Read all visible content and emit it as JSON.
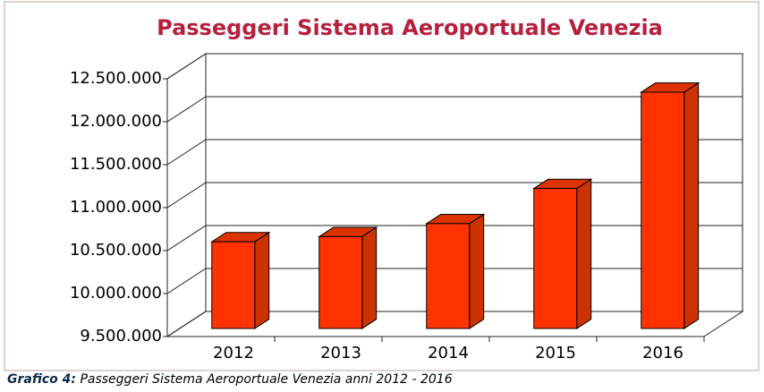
{
  "chart_data": {
    "type": "bar3d",
    "title": "Passeggeri  Sistema Aeroportuale Venezia",
    "categories": [
      "2012",
      "2013",
      "2014",
      "2015",
      "2016"
    ],
    "values": [
      10510000,
      10570000,
      10720000,
      11130000,
      12250000
    ],
    "color": "#ff3300",
    "side_color": "#cc3300",
    "top_color": "#dd3300",
    "ylim": [
      9500000,
      12500000
    ],
    "yticks": [
      {
        "value": 9500000,
        "label": "9.500.000"
      },
      {
        "value": 10000000,
        "label": "10.000.000"
      },
      {
        "value": 10500000,
        "label": "10.500.000"
      },
      {
        "value": 11000000,
        "label": "11.000.000"
      },
      {
        "value": 11500000,
        "label": "11.500.000"
      },
      {
        "value": 12000000,
        "label": "12.000.000"
      },
      {
        "value": 12500000,
        "label": "12.500.000"
      }
    ],
    "grid": true
  },
  "caption": {
    "label": "Grafico 4:",
    "text": " Passeggeri Sistema Aeroportuale Venezia anni 2012 - 2016"
  }
}
